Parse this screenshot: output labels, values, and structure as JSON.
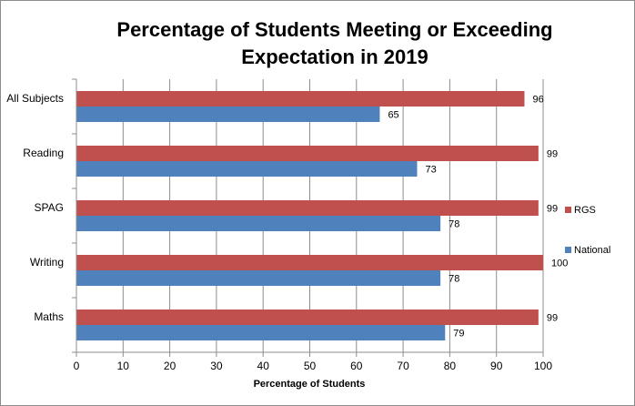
{
  "chart_data": {
    "type": "bar",
    "orientation": "horizontal",
    "title": "Percentage of Students Meeting or Exceeding Expectation in 2019",
    "xlabel": "Percentage of Students",
    "ylabel": "",
    "categories": [
      "All Subjects",
      "Reading",
      "SPAG",
      "Writing",
      "Maths"
    ],
    "series": [
      {
        "name": "RGS",
        "color": "#c0504d",
        "values": [
          96,
          99,
          99,
          100,
          99
        ]
      },
      {
        "name": "National",
        "color": "#4f81bd",
        "values": [
          65,
          73,
          78,
          78,
          79
        ]
      }
    ],
    "xlim": [
      0,
      100
    ],
    "xticks": [
      0,
      10,
      20,
      30,
      40,
      50,
      60,
      70,
      80,
      90,
      100
    ],
    "grid": true,
    "data_labels": true,
    "legend_position": "right"
  }
}
